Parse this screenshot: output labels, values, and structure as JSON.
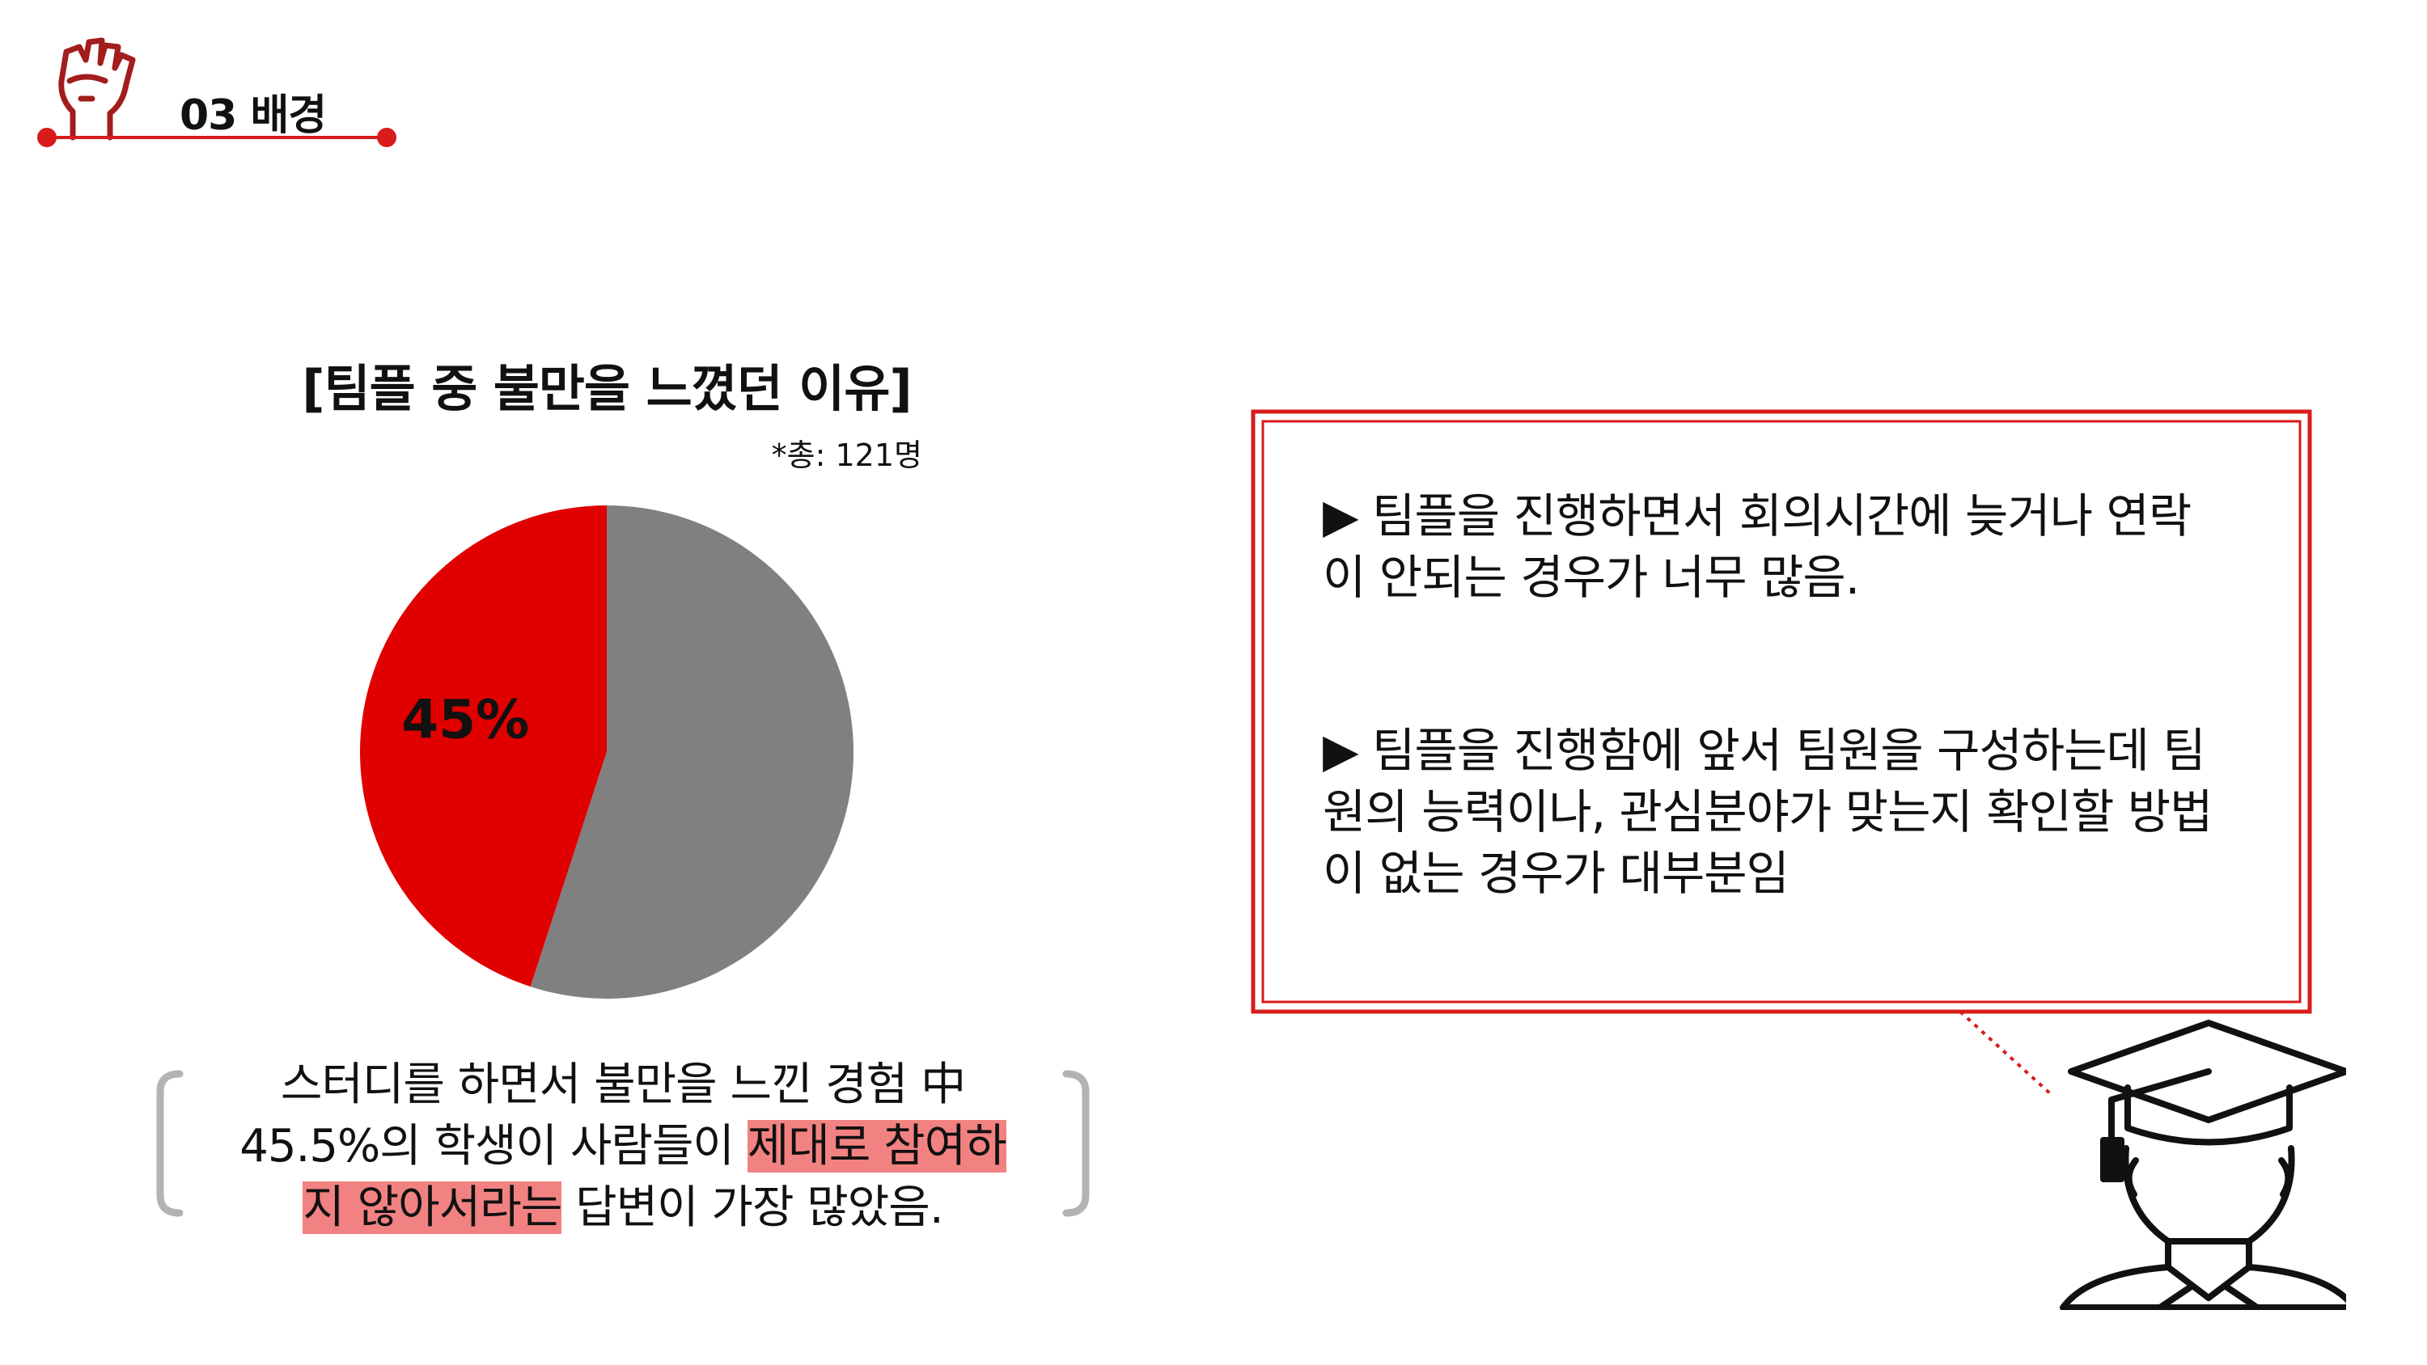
{
  "header": {
    "section_title": "03 배경",
    "icon": "raised-fist-icon",
    "accent_color": "#d81b1b"
  },
  "chart_data": {
    "type": "pie",
    "title": "[팀플 중 불만을 느꼈던 이유]",
    "note": "*총: 121명",
    "slices": [
      {
        "value": 45,
        "label": "45%",
        "color": "#e00000"
      },
      {
        "value": 55,
        "label": "",
        "color": "#808080"
      }
    ]
  },
  "caption": {
    "line1": "스터디를 하면서 불만을 느낀 경험 中",
    "line2_plain": "45.5%의 학생이 사람들이 ",
    "line2_highlight": "제대로 참여하",
    "line3_highlight": "지 않아서라는",
    "line3_plain": " 답변이 가장 많았음.",
    "highlight_color": "#f28282"
  },
  "callout": {
    "bullets": [
      {
        "marker": "▶",
        "text": "팀플을 진행하면서 회의시간에 늦거나 연락이 안되는 경우가 너무 많음."
      },
      {
        "marker": "▶",
        "text": "팀플을 진행함에 앞서 팀원을 구성하는데 팀원의 능력이나, 관심분야가 맞는지 확인할 방법이 없는 경우가 대부분임"
      }
    ],
    "border_color": "#d81b1b",
    "speaker_icon": "graduate-student-icon"
  }
}
